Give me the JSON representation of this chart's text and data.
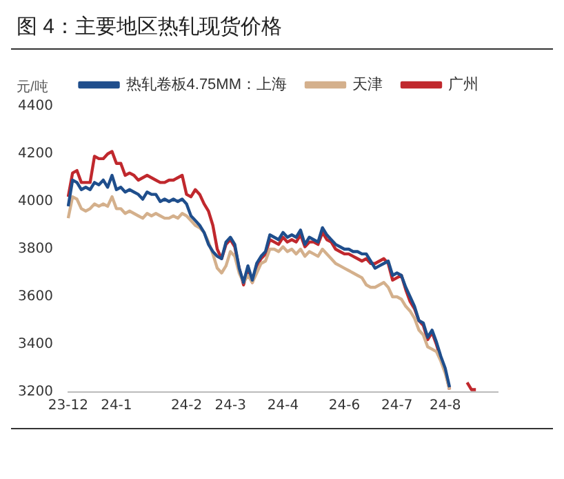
{
  "chart_data": {
    "type": "line",
    "title": "图 4：主要地区热轧现货价格",
    "ylabel": "元/吨",
    "categories": [
      "23-12",
      null,
      null,
      null,
      null,
      null,
      null,
      null,
      null,
      null,
      null,
      "24-1",
      null,
      null,
      null,
      null,
      null,
      null,
      null,
      null,
      null,
      null,
      null,
      null,
      null,
      null,
      null,
      "24-2",
      null,
      null,
      null,
      null,
      null,
      null,
      null,
      null,
      null,
      "24-3",
      null,
      null,
      null,
      null,
      null,
      null,
      null,
      null,
      null,
      null,
      null,
      "24-4",
      null,
      null,
      null,
      null,
      null,
      null,
      null,
      null,
      null,
      null,
      null,
      null,
      null,
      "24-6",
      null,
      null,
      null,
      null,
      null,
      null,
      null,
      null,
      null,
      null,
      null,
      "24-7",
      null,
      null,
      null,
      null,
      null,
      null,
      null,
      null,
      null,
      null,
      "24-8",
      null,
      null,
      null,
      null,
      null,
      null,
      null,
      null,
      null,
      null,
      null,
      null
    ],
    "series": [
      {
        "name": "热轧卷板4.75MM：上海",
        "color": "#1f4e8c",
        "values": [
          3980,
          4090,
          4080,
          4050,
          4060,
          4050,
          4080,
          4070,
          4090,
          4060,
          4110,
          4050,
          4060,
          4040,
          4050,
          4040,
          4030,
          4010,
          4040,
          4030,
          4030,
          4000,
          4010,
          4000,
          4010,
          4000,
          4010,
          3990,
          3940,
          3920,
          3900,
          3870,
          3820,
          3790,
          3770,
          3760,
          3830,
          3850,
          3820,
          3720,
          3660,
          3730,
          3670,
          3740,
          3770,
          3790,
          3860,
          3850,
          3840,
          3870,
          3850,
          3860,
          3850,
          3880,
          3820,
          3850,
          3840,
          3830,
          3890,
          3860,
          3840,
          3820,
          3810,
          3800,
          3800,
          3790,
          3790,
          3780,
          3780,
          3750,
          3720,
          3730,
          3740,
          3750,
          3690,
          3700,
          3690,
          3640,
          3600,
          3560,
          3500,
          3490,
          3430,
          3460,
          3410,
          3350,
          3300,
          3220,
          null,
          null,
          null,
          null,
          null,
          null,
          null,
          null,
          null,
          null,
          null
        ]
      },
      {
        "name": "天津",
        "color": "#d4b08c",
        "values": [
          3930,
          4020,
          4010,
          3970,
          3960,
          3970,
          3990,
          3980,
          3990,
          3980,
          4020,
          3970,
          3970,
          3950,
          3960,
          3950,
          3940,
          3930,
          3950,
          3940,
          3950,
          3940,
          3930,
          3930,
          3940,
          3930,
          3950,
          3940,
          3920,
          3900,
          3890,
          3870,
          3830,
          3780,
          3720,
          3700,
          3730,
          3790,
          3770,
          3700,
          3660,
          3690,
          3660,
          3700,
          3740,
          3750,
          3800,
          3800,
          3790,
          3810,
          3790,
          3800,
          3780,
          3800,
          3770,
          3790,
          3780,
          3770,
          3800,
          3780,
          3760,
          3740,
          3730,
          3720,
          3710,
          3700,
          3690,
          3680,
          3650,
          3640,
          3640,
          3650,
          3660,
          3640,
          3600,
          3600,
          3590,
          3560,
          3540,
          3510,
          3460,
          3440,
          3390,
          3380,
          3370,
          3330,
          3280,
          3210,
          null,
          null,
          null,
          null,
          null,
          null,
          null,
          null,
          null,
          null,
          null
        ]
      },
      {
        "name": "广州",
        "color": "#c0282d",
        "values": [
          4020,
          4120,
          4130,
          4080,
          4080,
          4080,
          4190,
          4180,
          4180,
          4200,
          4210,
          4160,
          4160,
          4110,
          4120,
          4110,
          4090,
          4100,
          4110,
          4100,
          4090,
          4080,
          4080,
          4090,
          4090,
          4100,
          4110,
          4030,
          4020,
          4050,
          4030,
          3990,
          3960,
          3900,
          3800,
          3760,
          3820,
          3840,
          3810,
          3720,
          3650,
          3720,
          3660,
          3730,
          3760,
          3780,
          3840,
          3830,
          3820,
          3850,
          3830,
          3840,
          3830,
          3860,
          3810,
          3830,
          3830,
          3820,
          3870,
          3840,
          3830,
          3800,
          3790,
          3780,
          3780,
          3770,
          3760,
          3750,
          3760,
          3740,
          3740,
          3750,
          3760,
          3740,
          3670,
          3680,
          3690,
          3630,
          3580,
          3550,
          3500,
          3480,
          3420,
          3450,
          3400,
          3340,
          3290,
          3210,
          null,
          null,
          null,
          3240,
          3210,
          3210,
          null,
          null,
          null,
          null,
          null
        ]
      }
    ],
    "ylim": [
      3200,
      4400
    ],
    "yticks": [
      3200,
      3400,
      3600,
      3800,
      4000,
      4200,
      4400
    ],
    "grid": false,
    "legend": "top"
  }
}
